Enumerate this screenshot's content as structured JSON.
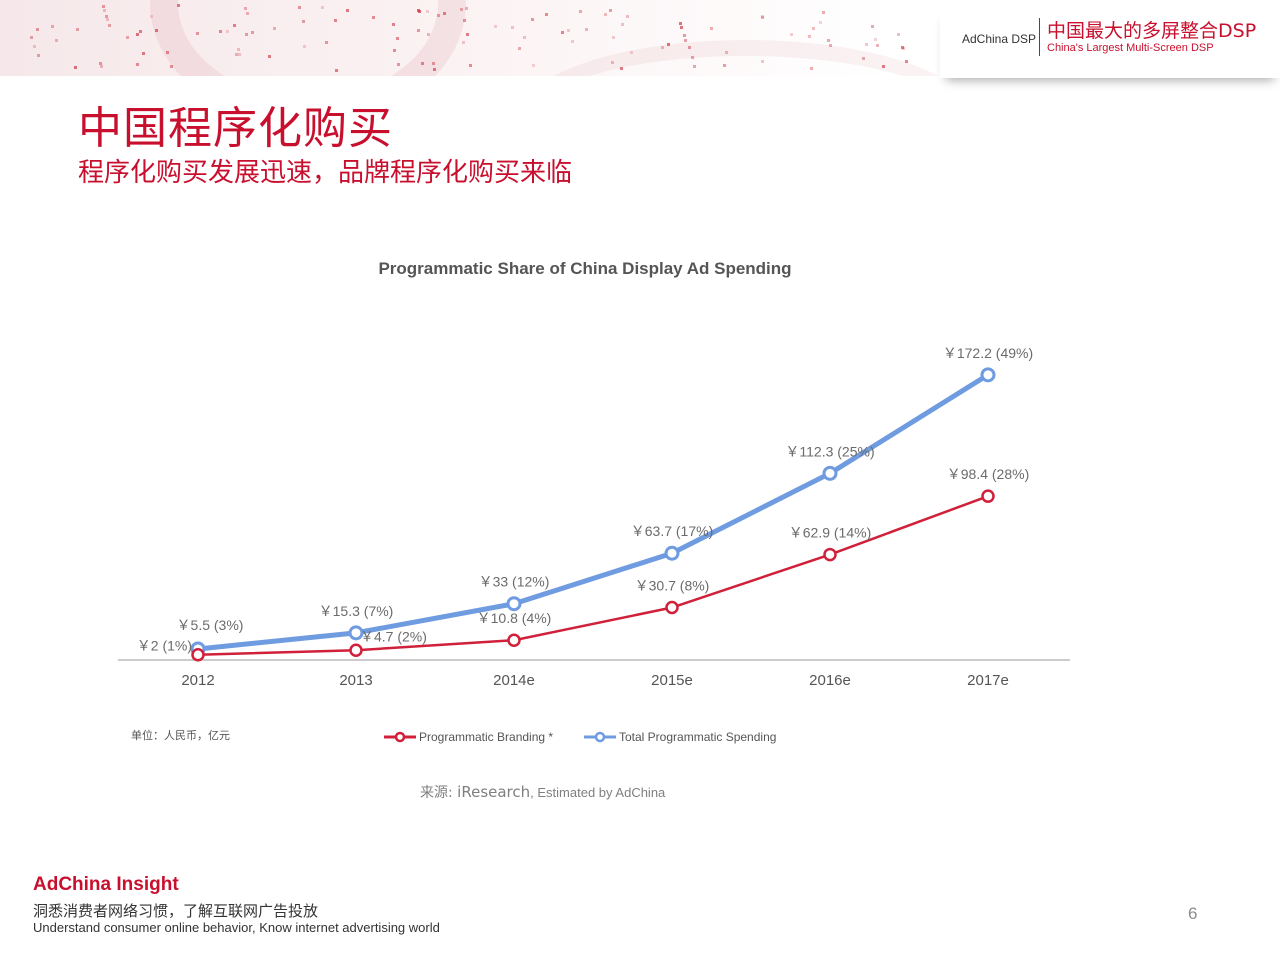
{
  "header": {
    "brand_small": "AdChina DSP",
    "brand_cn": "中国最大的多屏整合DSP",
    "brand_en": "China's Largest Multi-Screen DSP",
    "accent_color": "#c8102e"
  },
  "page": {
    "title": "中国程序化购买",
    "subtitle": "程序化购买发展迅速，品牌程序化购买来临"
  },
  "chart_data": {
    "type": "line",
    "title": "Programmatic Share of China Display Ad Spending",
    "categories": [
      "2012",
      "2013",
      "2014e",
      "2015e",
      "2016e",
      "2017e"
    ],
    "series": [
      {
        "name": "Programmatic Branding *",
        "color": "#d0203a",
        "values": [
          2,
          4.7,
          10.8,
          30.7,
          62.9,
          98.4
        ],
        "labels": [
          "￥2 (1%)",
          "￥4.7 (2%)",
          "￥10.8 (4%)",
          "￥30.7 (8%)",
          "￥62.9 (14%)",
          "￥98.4 (28%)"
        ]
      },
      {
        "name": "Total Programmatic Spending",
        "color": "#6f9be0",
        "values": [
          5.5,
          15.3,
          33,
          63.7,
          112.3,
          172.2
        ],
        "labels": [
          "￥5.5 (3%)",
          "￥15.3 (7%)",
          "￥33 (12%)",
          "￥63.7 (17%)",
          "￥112.3 (25%)",
          "￥172.2 (49%)"
        ]
      }
    ],
    "ylim": [
      0,
      180
    ],
    "grid": false,
    "legend_position": "bottom",
    "unit_note": "单位：人民币，亿元"
  },
  "source": {
    "prefix": "来源:",
    "main": "iResearch",
    "estimate": ", Estimated by AdChina"
  },
  "footer": {
    "brand": "AdChina Insight",
    "tagline_cn": "洞悉消费者网络习惯，了解互联网广告投放",
    "tagline_en": "Understand consumer online behavior, Know internet advertising world",
    "page_number": "6"
  }
}
